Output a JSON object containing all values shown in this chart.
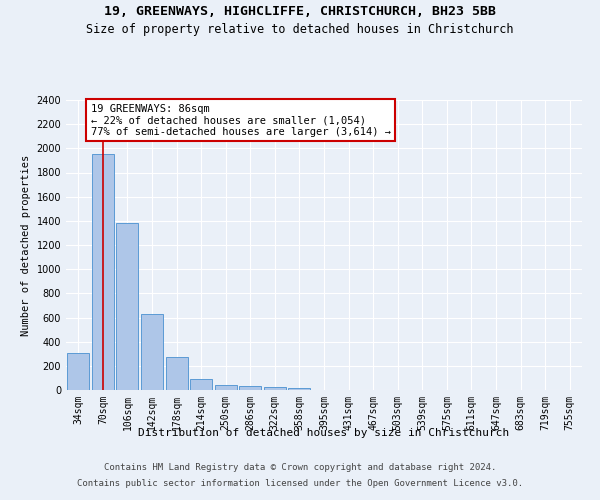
{
  "title1": "19, GREENWAYS, HIGHCLIFFE, CHRISTCHURCH, BH23 5BB",
  "title2": "Size of property relative to detached houses in Christchurch",
  "xlabel": "Distribution of detached houses by size in Christchurch",
  "ylabel": "Number of detached properties",
  "categories": [
    "34sqm",
    "70sqm",
    "106sqm",
    "142sqm",
    "178sqm",
    "214sqm",
    "250sqm",
    "286sqm",
    "322sqm",
    "358sqm",
    "395sqm",
    "431sqm",
    "467sqm",
    "503sqm",
    "539sqm",
    "575sqm",
    "611sqm",
    "647sqm",
    "683sqm",
    "719sqm",
    "755sqm"
  ],
  "values": [
    310,
    1950,
    1380,
    630,
    270,
    95,
    45,
    30,
    25,
    20,
    0,
    0,
    0,
    0,
    0,
    0,
    0,
    0,
    0,
    0,
    0
  ],
  "bar_color": "#aec6e8",
  "bar_edge_color": "#5b9bd5",
  "red_line_index": 1,
  "annotation_text": "19 GREENWAYS: 86sqm\n← 22% of detached houses are smaller (1,054)\n77% of semi-detached houses are larger (3,614) →",
  "annotation_box_color": "#ffffff",
  "annotation_box_edge": "#cc0000",
  "vline_color": "#cc0000",
  "ylim": [
    0,
    2400
  ],
  "yticks": [
    0,
    200,
    400,
    600,
    800,
    1000,
    1200,
    1400,
    1600,
    1800,
    2000,
    2200,
    2400
  ],
  "footer1": "Contains HM Land Registry data © Crown copyright and database right 2024.",
  "footer2": "Contains public sector information licensed under the Open Government Licence v3.0.",
  "bg_color": "#eaf0f8",
  "fig_bg_color": "#eaf0f8",
  "grid_color": "#ffffff",
  "title1_fontsize": 9.5,
  "title2_fontsize": 8.5,
  "xlabel_fontsize": 8,
  "ylabel_fontsize": 7.5,
  "tick_fontsize": 7,
  "annot_fontsize": 7.5,
  "footer_fontsize": 6.5
}
